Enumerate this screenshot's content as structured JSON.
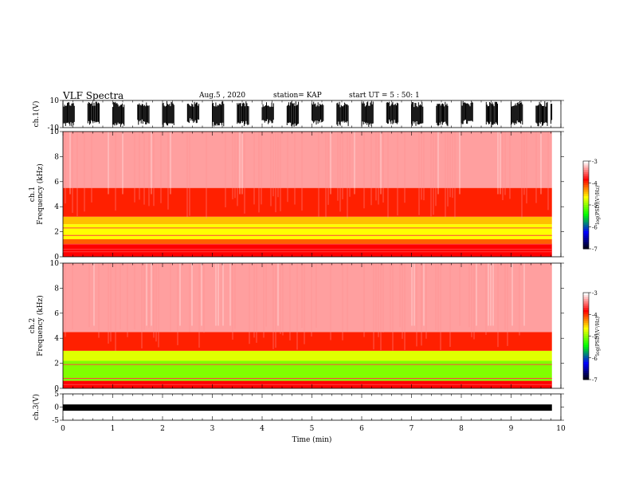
{
  "header": {
    "title": "VLF Spectra",
    "date": "Aug.5 , 2020",
    "station": "station= KAP",
    "start": "start UT = 5 : 50: 1"
  },
  "chart_data": [
    {
      "type": "line",
      "title": "VLF Spectra",
      "ylabel": "ch.1(V)",
      "ylim": [
        -10,
        10
      ],
      "yticks": [
        "10",
        "-10"
      ],
      "xlim": [
        0,
        10
      ],
      "series": [
        {
          "values": [
            {
              "t": 0.0,
              "lo": -9.5,
              "hi": 9.5
            },
            {
              "t": 0.5,
              "lo": -8.5,
              "hi": 9.5
            },
            {
              "t": 1.0,
              "lo": -9.5,
              "hi": 9.0
            },
            {
              "t": 1.5,
              "lo": -8.0,
              "hi": 9.5
            },
            {
              "t": 2.0,
              "lo": -9.5,
              "hi": 9.5
            },
            {
              "t": 2.5,
              "lo": -7.0,
              "hi": 9.0
            },
            {
              "t": 3.0,
              "lo": -9.5,
              "hi": 9.5
            },
            {
              "t": 3.5,
              "lo": -9.0,
              "hi": 9.5
            },
            {
              "t": 4.0,
              "lo": -7.5,
              "hi": 9.0
            },
            {
              "t": 4.5,
              "lo": -9.5,
              "hi": 9.5
            },
            {
              "t": 5.0,
              "lo": -8.0,
              "hi": 9.5
            },
            {
              "t": 5.5,
              "lo": -9.0,
              "hi": 9.0
            },
            {
              "t": 6.0,
              "lo": -9.5,
              "hi": 9.5
            },
            {
              "t": 6.5,
              "lo": -7.5,
              "hi": 9.5
            },
            {
              "t": 7.0,
              "lo": -9.0,
              "hi": 9.0
            },
            {
              "t": 7.5,
              "lo": -9.5,
              "hi": 9.5
            },
            {
              "t": 8.0,
              "lo": -8.0,
              "hi": 9.5
            },
            {
              "t": 8.5,
              "lo": -9.5,
              "hi": 9.0
            },
            {
              "t": 9.0,
              "lo": -8.5,
              "hi": 9.5
            },
            {
              "t": 9.5,
              "lo": -9.5,
              "hi": 9.5
            },
            {
              "t": 9.8,
              "lo": -8.0,
              "hi": 9.0
            }
          ]
        }
      ]
    },
    {
      "type": "heatmap",
      "ylabel": "ch.1\nFrequency (kHz)",
      "ylim": [
        0,
        10
      ],
      "yticks": [
        0,
        2,
        4,
        6,
        8,
        10
      ],
      "xlim": [
        0,
        10
      ],
      "data_extent_min": 9.82,
      "colorbar": {
        "label": "log(PSD)(V²/Hz)",
        "range": [
          -7,
          -3
        ],
        "ticks": [
          "-3",
          "-4",
          "-5",
          "-6",
          "-7"
        ]
      },
      "bands": [
        {
          "from_khz": 0,
          "to_khz": 1.0,
          "level": -3.8
        },
        {
          "from_khz": 1.0,
          "to_khz": 1.4,
          "level": -4.1
        },
        {
          "from_khz": 1.4,
          "to_khz": 2.6,
          "level": -4.6
        },
        {
          "from_khz": 2.6,
          "to_khz": 3.2,
          "level": -4.4
        },
        {
          "from_khz": 3.2,
          "to_khz": 5.5,
          "level": -3.9
        },
        {
          "from_khz": 5.5,
          "to_khz": 10.0,
          "level": -3.3
        }
      ],
      "lines_khz": [
        0.4,
        0.6,
        1.0,
        1.7,
        2.3
      ]
    },
    {
      "type": "heatmap",
      "ylabel": "ch.2\nFrequency (kHz)",
      "ylim": [
        0,
        10
      ],
      "yticks": [
        0,
        2,
        4,
        6,
        8,
        10
      ],
      "xlim": [
        0,
        10
      ],
      "data_extent_min": 9.82,
      "colorbar": {
        "label": "log(PSD)(V²/Hz)",
        "range": [
          -7,
          -3
        ],
        "ticks": [
          "-3",
          "-4",
          "-5",
          "-6",
          "-7"
        ]
      },
      "bands": [
        {
          "from_khz": 0,
          "to_khz": 0.6,
          "level": -3.8
        },
        {
          "from_khz": 0.6,
          "to_khz": 2.2,
          "level": -5.0
        },
        {
          "from_khz": 2.2,
          "to_khz": 3.0,
          "level": -4.7
        },
        {
          "from_khz": 3.0,
          "to_khz": 4.5,
          "level": -3.9
        },
        {
          "from_khz": 4.5,
          "to_khz": 10.0,
          "level": -3.3
        }
      ],
      "lines_khz": [
        0.3,
        0.8,
        1.9
      ]
    },
    {
      "type": "line",
      "ylabel": "ch.3(V)",
      "xlabel": "Time (min)",
      "ylim": [
        -5,
        5
      ],
      "yticks": [
        "5",
        "0",
        "-5"
      ],
      "xlim": [
        0,
        10
      ],
      "xticks": [
        "0",
        "1",
        "2",
        "3",
        "4",
        "5",
        "6",
        "7",
        "8",
        "9",
        "10"
      ],
      "series": [
        {
          "band_lo": -0.6,
          "band_hi": 0.6,
          "offset": -0.2,
          "t_end": 9.82
        }
      ]
    }
  ],
  "colors": {
    "axes": "#000000",
    "trace": "#000000",
    "colormap": [
      "#000000",
      "#0000ff",
      "#00ff00",
      "#ffff00",
      "#ff0000",
      "#ffffff"
    ]
  }
}
